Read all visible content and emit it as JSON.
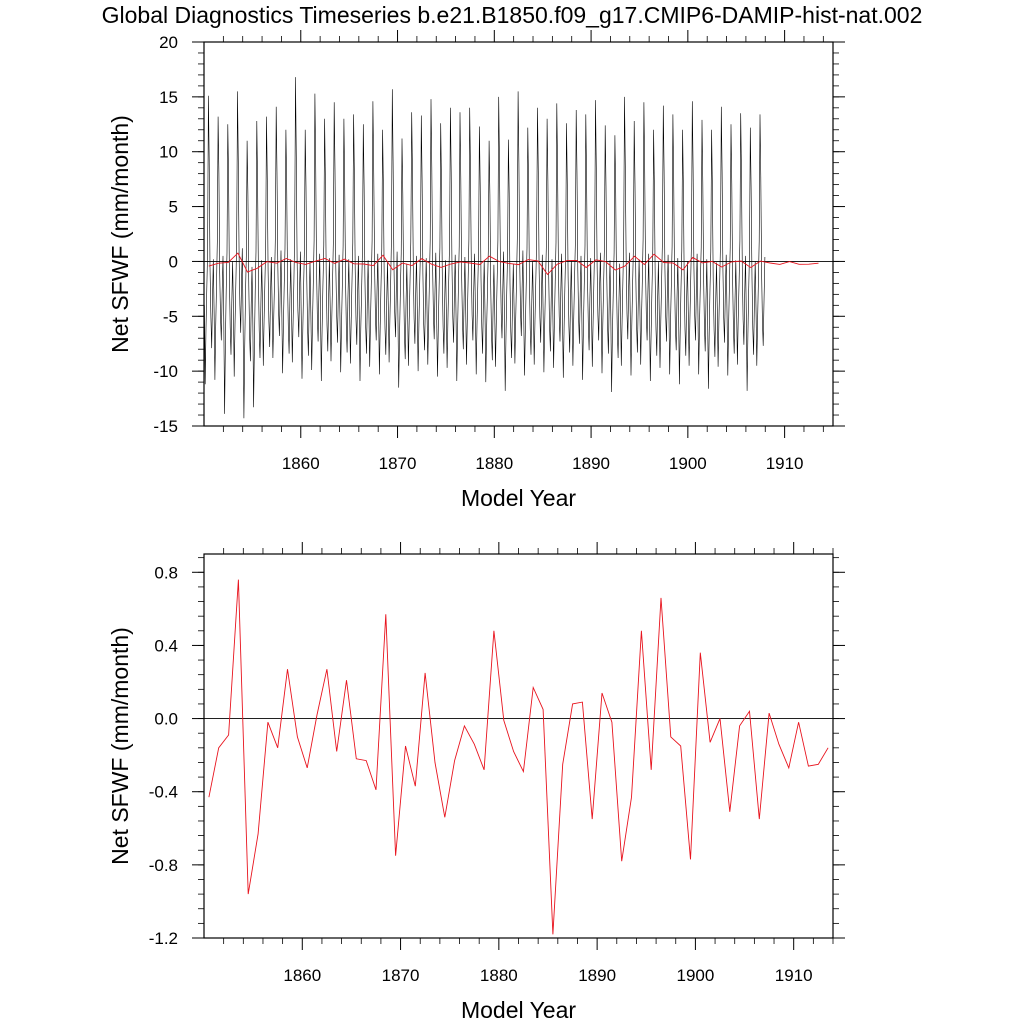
{
  "figure_title": "Global Diagnostics Timeseries b.e21.B1850.f09_g17.CMIP6-DAMIP-hist-nat.002",
  "colors": {
    "monthly": "#000000",
    "annual": "#e8141e",
    "frame": "#000000",
    "zero_line": "#000000"
  },
  "chart_data": [
    {
      "type": "line",
      "title": "Global Diagnostics Timeseries b.e21.B1850.f09_g17.CMIP6-DAMIP-hist-nat.002",
      "xlabel": "Model Year",
      "ylabel": "Net SFWF (mm/month)",
      "xlim": [
        1850,
        1915
      ],
      "ylim": [
        -15,
        20
      ],
      "xticks": [
        1860,
        1870,
        1880,
        1890,
        1900,
        1910
      ],
      "yticks": [
        -15,
        -10,
        -5,
        0,
        5,
        10,
        15,
        20
      ],
      "ytick_labels": [
        "-15",
        "-10",
        "-5",
        "0",
        "5",
        "10",
        "15",
        "20"
      ],
      "zero_line": true,
      "series": [
        {
          "kind": "monthly",
          "color": "#000000",
          "start_year": 1850,
          "values": [
            -4.0,
            -11.2,
            -6.1,
            -2.5,
            1.0,
            15.1,
            9.2,
            -0.5,
            -5.1,
            -7.9,
            -3.5,
            0.2,
            -4.5,
            -10.8,
            -6.0,
            -2.2,
            1.8,
            13.2,
            8.1,
            -1.0,
            -5.0,
            -7.2,
            -3.0,
            0.5,
            -5.5,
            -13.9,
            -7.5,
            -2.6,
            0.8,
            12.5,
            7.5,
            -1.5,
            -6.0,
            -8.5,
            -3.8,
            0.0,
            -4.2,
            -10.5,
            -5.8,
            -1.8,
            2.2,
            15.5,
            9.0,
            0.5,
            -4.0,
            -6.5,
            -2.0,
            1.2,
            -5.8,
            -14.3,
            -8.0,
            -3.0,
            0.5,
            11.0,
            6.2,
            -2.2,
            -6.8,
            -9.1,
            -4.0,
            -0.5,
            -5.2,
            -13.3,
            -7.8,
            -2.8,
            0.9,
            12.8,
            7.0,
            -1.2,
            -6.3,
            -8.8,
            -3.9,
            0.1,
            -4.0,
            -9.5,
            -5.3,
            -1.9,
            1.6,
            13.2,
            7.4,
            -0.9,
            -5.5,
            -7.8,
            -3.3,
            0.4,
            -3.8,
            -8.8,
            -4.9,
            -1.5,
            2.5,
            14.1,
            8.1,
            -0.2,
            -4.6,
            -6.8,
            -2.6,
            1.0,
            -4.5,
            -10.2,
            -5.9,
            -2.2,
            1.2,
            12.0,
            6.9,
            -1.6,
            -6.0,
            -8.4,
            -3.6,
            0.2,
            -4.1,
            -9.2,
            -5.5,
            -1.8,
            2.8,
            16.8,
            9.5,
            0.2,
            -4.5,
            -6.9,
            -2.4,
            0.9,
            -4.8,
            -10.7,
            -6.3,
            -2.4,
            1.1,
            12.0,
            6.8,
            -1.7,
            -6.2,
            -8.6,
            -3.7,
            0.0,
            -4.4,
            -9.9,
            -5.6,
            -1.9,
            1.9,
            15.3,
            8.9,
            -0.3,
            -4.9,
            -7.3,
            -2.8,
            0.7,
            -4.6,
            -10.9,
            -6.2,
            -2.3,
            1.5,
            13.0,
            7.3,
            -1.1,
            -5.8,
            -8.2,
            -3.5,
            0.3,
            -4.2,
            -9.1,
            -5.2,
            -1.7,
            2.1,
            14.5,
            8.4,
            -0.5,
            -5.0,
            -7.4,
            -2.9,
            0.6,
            -4.7,
            -10.1,
            -5.9,
            -2.2,
            1.4,
            13.0,
            7.1,
            -1.3,
            -5.9,
            -8.3,
            -3.5,
            0.2,
            -4.3,
            -9.3,
            -5.4,
            -1.8,
            1.7,
            13.4,
            7.8,
            -0.8,
            -5.3,
            -7.6,
            -3.1,
            0.5,
            -4.6,
            -10.9,
            -6.1,
            -2.3,
            1.3,
            12.5,
            7.0,
            -1.4,
            -6.0,
            -8.4,
            -3.6,
            0.1,
            -4.4,
            -9.6,
            -5.5,
            -1.9,
            1.9,
            14.6,
            8.5,
            -0.4,
            -4.9,
            -7.2,
            -2.8,
            0.7,
            -4.5,
            -10.3,
            -5.9,
            -2.2,
            1.2,
            12.0,
            6.8,
            -1.6,
            -6.1,
            -8.5,
            -3.7,
            0.0,
            -4.2,
            -9.2,
            -5.3,
            -1.8,
            2.4,
            15.7,
            9.1,
            0.0,
            -4.6,
            -6.9,
            -2.6,
            0.9,
            -4.8,
            -11.5,
            -6.5,
            -2.5,
            0.7,
            11.2,
            6.2,
            -2.0,
            -6.5,
            -8.9,
            -4.0,
            -0.2,
            -4.3,
            -9.5,
            -5.4,
            -1.9,
            1.8,
            13.6,
            7.9,
            -0.7,
            -5.2,
            -7.5,
            -3.0,
            0.5,
            -4.5,
            -10.0,
            -5.8,
            -2.1,
            1.4,
            13.3,
            7.4,
            -1.1,
            -5.7,
            -8.1,
            -3.4,
            0.3,
            -4.3,
            -9.4,
            -5.4,
            -1.8,
            2.0,
            14.8,
            8.6,
            -0.3,
            -4.8,
            -7.1,
            -2.7,
            0.8,
            -4.6,
            -10.5,
            -6.0,
            -2.3,
            1.3,
            12.6,
            7.0,
            -1.5,
            -6.0,
            -8.4,
            -3.6,
            0.1,
            -4.4,
            -9.7,
            -5.5,
            -1.9,
            1.8,
            14.0,
            8.1,
            -0.6,
            -5.1,
            -7.4,
            -2.9,
            0.6,
            -4.7,
            -10.9,
            -6.2,
            -2.3,
            1.4,
            13.6,
            7.6,
            -1.0,
            -5.6,
            -8.0,
            -3.3,
            0.4,
            -4.3,
            -9.4,
            -5.3,
            -1.8,
            2.0,
            14.0,
            8.2,
            -0.4,
            -4.9,
            -7.2,
            -2.8,
            0.7,
            -4.5,
            -10.3,
            -5.8,
            -2.2,
            1.3,
            12.3,
            6.9,
            -1.5,
            -6.0,
            -8.4,
            -3.6,
            0.1,
            -4.6,
            -11.0,
            -6.3,
            -2.4,
            1.0,
            11.0,
            6.1,
            -2.1,
            -6.6,
            -9.0,
            -4.1,
            -0.3,
            -4.4,
            -9.6,
            -5.5,
            -1.9,
            1.9,
            15.0,
            8.8,
            -0.2,
            -4.7,
            -7.0,
            -2.6,
            0.9,
            -4.9,
            -11.8,
            -6.7,
            -2.6,
            0.8,
            11.1,
            6.2,
            -2.0,
            -6.4,
            -8.8,
            -3.9,
            -0.2,
            -4.3,
            -9.3,
            -5.3,
            -1.8,
            2.1,
            15.5,
            9.0,
            0.1,
            -4.5,
            -6.8,
            -2.5,
            1.0,
            -4.6,
            -10.4,
            -5.9,
            -2.2,
            1.2,
            12.2,
            6.8,
            -1.6,
            -6.1,
            -8.5,
            -3.7,
            0.0,
            -4.3,
            -9.4,
            -5.3,
            -1.8,
            1.9,
            14.0,
            8.1,
            -0.6,
            -5.1,
            -7.4,
            -2.9,
            0.6,
            -4.5,
            -10.1,
            -5.8,
            -2.1,
            1.3,
            13.0,
            7.3,
            -1.2,
            -5.8,
            -8.2,
            -3.5,
            0.2,
            -4.4,
            -9.7,
            -5.5,
            -1.9,
            1.7,
            14.4,
            8.3,
            -0.5,
            -5.0,
            -7.3,
            -2.8,
            0.7,
            -4.6,
            -10.6,
            -6.0,
            -2.3,
            1.2,
            12.6,
            7.0,
            -1.4,
            -5.9,
            -8.3,
            -3.6,
            0.1,
            -4.4,
            -9.5,
            -5.4,
            -1.8,
            1.9,
            13.8,
            8.0,
            -0.7,
            -5.2,
            -7.5,
            -3.0,
            0.5,
            -4.7,
            -10.8,
            -6.2,
            -2.3,
            1.4,
            13.4,
            7.5,
            -1.1,
            -5.7,
            -8.1,
            -3.4,
            0.3,
            -4.4,
            -9.6,
            -5.5,
            -1.9,
            1.9,
            14.7,
            8.5,
            -0.4,
            -4.9,
            -7.2,
            -2.8,
            0.8,
            -4.5,
            -10.2,
            -5.8,
            -2.2,
            1.3,
            12.4,
            6.9,
            -1.5,
            -6.0,
            -8.4,
            -3.6,
            0.1,
            -4.8,
            -11.9,
            -6.7,
            -2.6,
            0.8,
            11.5,
            6.4,
            -1.9,
            -6.4,
            -8.8,
            -3.9,
            -0.2,
            -4.3,
            -9.5,
            -5.4,
            -1.8,
            2.1,
            15.0,
            8.7,
            -0.3,
            -4.8,
            -7.1,
            -2.7,
            0.8,
            -4.6,
            -10.4,
            -5.9,
            -2.2,
            1.3,
            12.8,
            7.1,
            -1.3,
            -5.9,
            -8.3,
            -3.5,
            0.2,
            -4.3,
            -9.4,
            -5.3,
            -1.8,
            2.0,
            14.5,
            8.4,
            -0.4,
            -4.9,
            -7.2,
            -2.8,
            0.7,
            -4.7,
            -10.9,
            -6.2,
            -2.4,
            1.1,
            12.0,
            6.7,
            -1.7,
            -6.2,
            -8.6,
            -3.7,
            0.0,
            -4.4,
            -9.7,
            -5.5,
            -1.9,
            1.8,
            14.2,
            8.2,
            -0.5,
            -5.0,
            -7.3,
            -2.9,
            0.6,
            -4.5,
            -10.3,
            -5.8,
            -2.2,
            1.4,
            13.4,
            7.5,
            -1.1,
            -5.7,
            -8.1,
            -3.4,
            0.3,
            -4.6,
            -11.2,
            -6.4,
            -2.4,
            1.0,
            12.0,
            6.7,
            -1.7,
            -6.2,
            -8.6,
            -3.7,
            0.0,
            -4.3,
            -9.5,
            -5.4,
            -1.8,
            2.0,
            14.6,
            8.5,
            -0.4,
            -4.9,
            -7.2,
            -2.8,
            0.7,
            -4.5,
            -10.3,
            -5.8,
            -2.2,
            1.3,
            12.9,
            7.2,
            -1.3,
            -5.8,
            -8.2,
            -3.5,
            0.2,
            -4.8,
            -11.6,
            -6.6,
            -2.5,
            0.9,
            12.0,
            6.7,
            -1.7,
            -6.3,
            -8.7,
            -3.8,
            -0.1,
            -4.4,
            -9.6,
            -5.5,
            -1.9,
            1.8,
            14.1,
            8.2,
            -0.6,
            -5.1,
            -7.4,
            -2.9,
            0.6,
            -4.6,
            -10.4,
            -5.9,
            -2.2,
            1.3,
            12.5,
            7.0,
            -1.5,
            -6.0,
            -8.4,
            -3.6,
            0.1,
            -4.3,
            -9.4,
            -5.3,
            -1.8,
            1.9,
            13.5,
            7.8,
            -0.8,
            -5.3,
            -7.6,
            -3.1,
            0.5,
            -4.8,
            -11.8,
            -6.7,
            -2.6,
            0.9,
            12.2,
            6.8,
            -1.6,
            -6.1,
            -8.5,
            -3.7,
            0.0,
            -4.2,
            -9.5,
            -5.4,
            -1.8,
            1.9,
            13.4,
            7.7,
            -0.9,
            -5.4,
            -7.7,
            -3.2,
            0.4
          ]
        },
        {
          "kind": "annual",
          "color": "#e8141e",
          "x": [
            1850.5,
            1851.5,
            1852.5,
            1853.5,
            1854.5,
            1855.5,
            1856.5,
            1857.5,
            1858.5,
            1859.5,
            1860.5,
            1861.5,
            1862.5,
            1863.5,
            1864.5,
            1865.5,
            1866.5,
            1867.5,
            1868.5,
            1869.5,
            1870.5,
            1871.5,
            1872.5,
            1873.5,
            1874.5,
            1875.5,
            1876.5,
            1877.5,
            1878.5,
            1879.5,
            1880.5,
            1881.5,
            1882.5,
            1883.5,
            1884.5,
            1885.5,
            1886.5,
            1887.5,
            1888.5,
            1889.5,
            1890.5,
            1891.5,
            1892.5,
            1893.5,
            1894.5,
            1895.5,
            1896.5,
            1897.5,
            1898.5,
            1899.5,
            1900.5,
            1901.5,
            1902.5,
            1903.5,
            1904.5,
            1905.5,
            1906.5,
            1907.5,
            1908.5,
            1909.5,
            1910.5,
            1911.5,
            1912.5,
            1913.5
          ],
          "values": [
            -0.43,
            -0.16,
            -0.09,
            0.76,
            -0.96,
            -0.63,
            -0.02,
            -0.16,
            0.27,
            -0.1,
            -0.27,
            0.02,
            0.27,
            -0.18,
            0.21,
            -0.22,
            -0.23,
            -0.39,
            0.57,
            -0.75,
            -0.15,
            -0.37,
            0.25,
            -0.24,
            -0.54,
            -0.23,
            -0.04,
            -0.14,
            -0.28,
            0.48,
            -0.01,
            -0.18,
            -0.29,
            0.17,
            0.05,
            -1.18,
            -0.25,
            0.08,
            0.09,
            -0.55,
            0.14,
            -0.02,
            -0.78,
            -0.43,
            0.48,
            -0.28,
            0.66,
            -0.1,
            -0.15,
            -0.77,
            0.36,
            -0.13,
            0.0,
            -0.51,
            -0.04,
            0.04,
            -0.55,
            0.03,
            -0.14,
            -0.27,
            -0.02,
            -0.26,
            -0.25,
            -0.16
          ]
        }
      ]
    },
    {
      "type": "line",
      "xlabel": "Model Year",
      "ylabel": "Net SFWF (mm/month)",
      "xlim": [
        1850,
        1914
      ],
      "ylim": [
        -1.2,
        0.9
      ],
      "xticks": [
        1860,
        1870,
        1880,
        1890,
        1900,
        1910
      ],
      "yticks": [
        -1.2,
        -0.8,
        -0.4,
        0.0,
        0.4,
        0.8
      ],
      "ytick_labels": [
        "-1.2",
        "-0.8",
        "-0.4",
        "0.0",
        "0.4",
        "0.8"
      ],
      "zero_line": true,
      "series": [
        {
          "kind": "annual",
          "color": "#e8141e",
          "x": [
            1850.5,
            1851.5,
            1852.5,
            1853.5,
            1854.5,
            1855.5,
            1856.5,
            1857.5,
            1858.5,
            1859.5,
            1860.5,
            1861.5,
            1862.5,
            1863.5,
            1864.5,
            1865.5,
            1866.5,
            1867.5,
            1868.5,
            1869.5,
            1870.5,
            1871.5,
            1872.5,
            1873.5,
            1874.5,
            1875.5,
            1876.5,
            1877.5,
            1878.5,
            1879.5,
            1880.5,
            1881.5,
            1882.5,
            1883.5,
            1884.5,
            1885.5,
            1886.5,
            1887.5,
            1888.5,
            1889.5,
            1890.5,
            1891.5,
            1892.5,
            1893.5,
            1894.5,
            1895.5,
            1896.5,
            1897.5,
            1898.5,
            1899.5,
            1900.5,
            1901.5,
            1902.5,
            1903.5,
            1904.5,
            1905.5,
            1906.5,
            1907.5,
            1908.5,
            1909.5,
            1910.5,
            1911.5,
            1912.5,
            1913.5
          ],
          "values": [
            -0.43,
            -0.16,
            -0.09,
            0.76,
            -0.96,
            -0.63,
            -0.02,
            -0.16,
            0.27,
            -0.1,
            -0.27,
            0.02,
            0.27,
            -0.18,
            0.21,
            -0.22,
            -0.23,
            -0.39,
            0.57,
            -0.75,
            -0.15,
            -0.37,
            0.25,
            -0.24,
            -0.54,
            -0.23,
            -0.04,
            -0.14,
            -0.28,
            0.48,
            -0.01,
            -0.18,
            -0.29,
            0.17,
            0.05,
            -1.18,
            -0.25,
            0.08,
            0.09,
            -0.55,
            0.14,
            -0.02,
            -0.78,
            -0.43,
            0.48,
            -0.28,
            0.66,
            -0.1,
            -0.15,
            -0.77,
            0.36,
            -0.13,
            0.0,
            -0.51,
            -0.04,
            0.04,
            -0.55,
            0.03,
            -0.14,
            -0.27,
            -0.02,
            -0.26,
            -0.25,
            -0.16
          ]
        }
      ]
    }
  ]
}
